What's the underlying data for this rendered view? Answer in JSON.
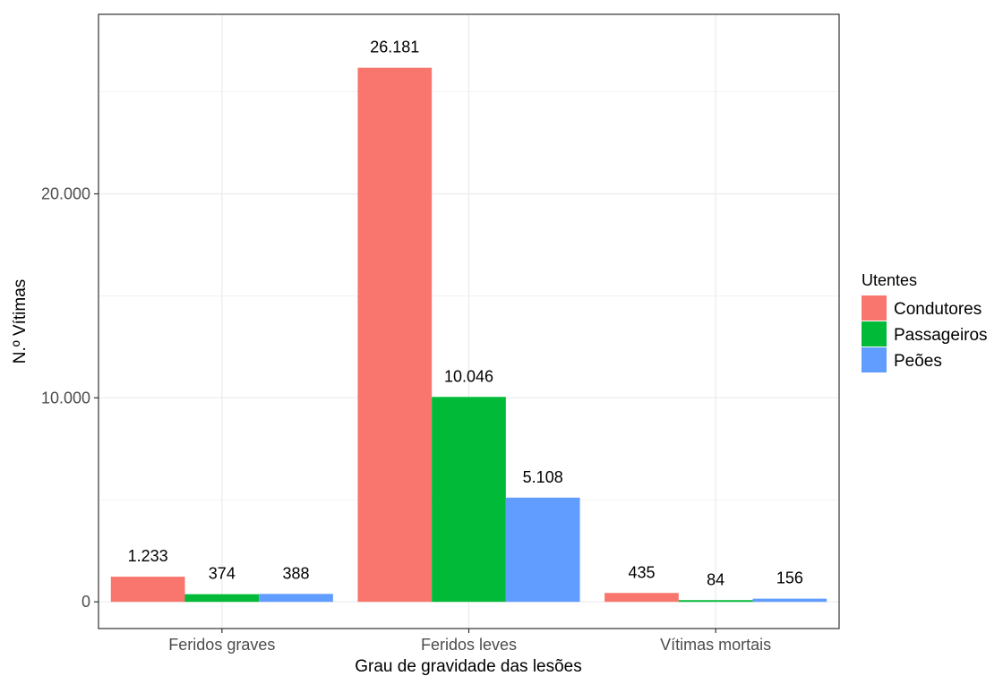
{
  "chart_data": {
    "type": "bar",
    "xlabel": "Grau de gravidade das lesões",
    "ylabel": "N.º Vítimas",
    "categories": [
      "Feridos graves",
      "Feridos leves",
      "Vítimas mortais"
    ],
    "series": [
      {
        "name": "Condutores",
        "color": "#F8766D",
        "values": [
          1233,
          26181,
          435
        ],
        "labels": [
          "1.233",
          "26.181",
          "435"
        ]
      },
      {
        "name": "Passageiros",
        "color": "#00BA38",
        "values": [
          374,
          10046,
          84
        ],
        "labels": [
          "374",
          "10.046",
          "84"
        ]
      },
      {
        "name": "Peões",
        "color": "#619CFF",
        "values": [
          388,
          5108,
          156
        ],
        "labels": [
          "388",
          "5.108",
          "156"
        ]
      }
    ],
    "yticks": [
      0,
      10000,
      20000
    ],
    "ytick_labels": [
      "0",
      "10.000",
      "20.000"
    ],
    "ylim": [
      -1309,
      28800
    ],
    "grid": true,
    "legend": {
      "title": "Utentes",
      "position": "right"
    }
  }
}
